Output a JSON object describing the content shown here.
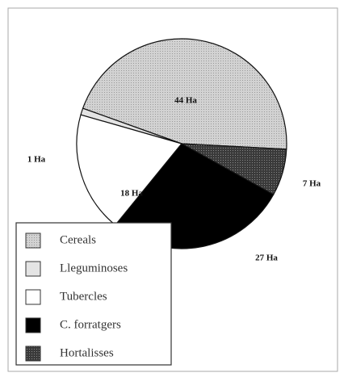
{
  "chart_data": {
    "type": "pie",
    "categories": [
      "Cereals",
      "Lleguminoses",
      "Tubercles",
      "C. forratgers",
      "Hortalisses"
    ],
    "values": [
      44,
      1,
      18,
      27,
      7
    ],
    "value_labels": [
      "44 Ha",
      "1 Ha",
      "18 Ha",
      "27 Ha",
      "7 Ha"
    ],
    "colors": [
      "#d2d2d2",
      "#e4e4e4",
      "#ffffff",
      "#000000",
      "#3a3a3a"
    ]
  }
}
